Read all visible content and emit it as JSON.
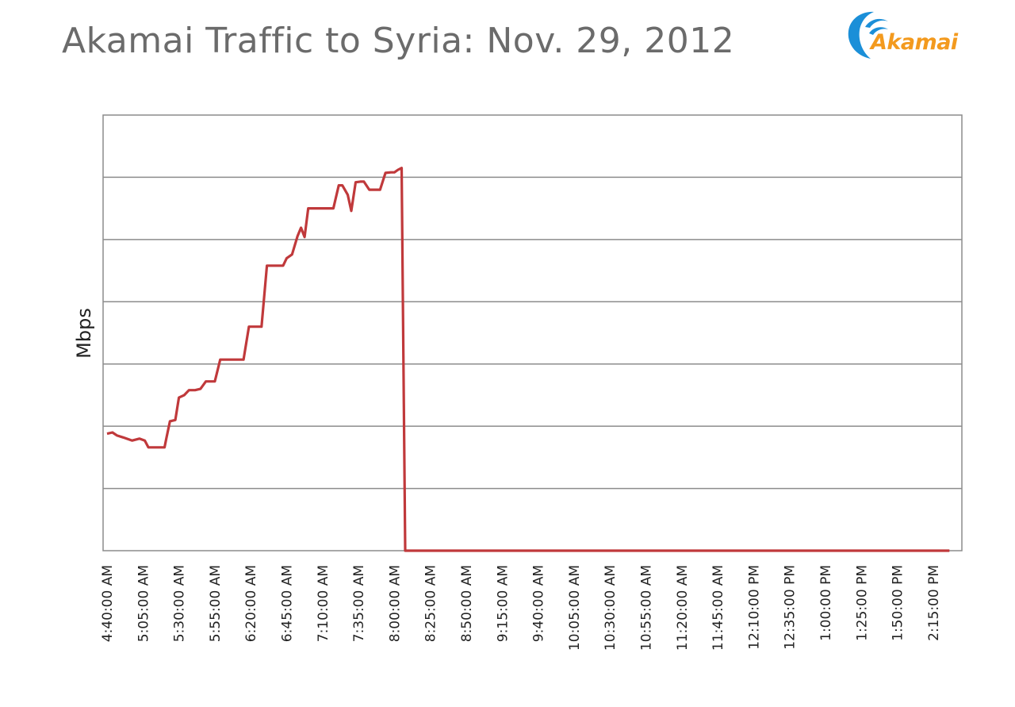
{
  "header": {
    "title": "Akamai Traffic to Syria: Nov. 29, 2012",
    "logo_text": "Akamai"
  },
  "colors": {
    "title": "#6b6b6b",
    "series": "#c0393b",
    "grid": "#8c8c8c",
    "logo_orange": "#f39a1e",
    "logo_blue": "#1b8fd8"
  },
  "chart_data": {
    "type": "line",
    "title": "Akamai Traffic to Syria: Nov. 29, 2012",
    "xlabel": "",
    "ylabel": "Mbps",
    "ylim": [
      0,
      7
    ],
    "y_tick_labels_shown": false,
    "grid": true,
    "x_tick_labels": [
      "4:40:00 AM",
      "5:05:00 AM",
      "5:30:00 AM",
      "5:55:00 AM",
      "6:20:00 AM",
      "6:45:00 AM",
      "7:10:00 AM",
      "7:35:00 AM",
      "8:00:00 AM",
      "8:25:00 AM",
      "8:50:00 AM",
      "9:15:00 AM",
      "9:40:00 AM",
      "10:05:00 AM",
      "10:30:00 AM",
      "10:55:00 AM",
      "11:20:00 AM",
      "11:45:00 AM",
      "12:10:00 PM",
      "12:35:00 PM",
      "1:00:00 PM",
      "1:25:00 PM",
      "1:50:00 PM",
      "2:15:00 PM"
    ],
    "series": [
      {
        "name": "",
        "points": [
          [
            0.0,
            1.88
          ],
          [
            0.15,
            1.9
          ],
          [
            0.28,
            1.85
          ],
          [
            0.45,
            1.82
          ],
          [
            0.7,
            1.77
          ],
          [
            0.9,
            1.8
          ],
          [
            1.05,
            1.77
          ],
          [
            1.15,
            1.66
          ],
          [
            1.4,
            1.66
          ],
          [
            1.6,
            1.66
          ],
          [
            1.65,
            1.8
          ],
          [
            1.75,
            2.08
          ],
          [
            1.9,
            2.1
          ],
          [
            2.0,
            2.46
          ],
          [
            2.15,
            2.5
          ],
          [
            2.28,
            2.58
          ],
          [
            2.45,
            2.58
          ],
          [
            2.6,
            2.6
          ],
          [
            2.75,
            2.72
          ],
          [
            3.0,
            2.72
          ],
          [
            3.15,
            3.07
          ],
          [
            3.4,
            3.07
          ],
          [
            3.6,
            3.07
          ],
          [
            3.8,
            3.07
          ],
          [
            3.95,
            3.6
          ],
          [
            4.1,
            3.6
          ],
          [
            4.3,
            3.6
          ],
          [
            4.45,
            4.58
          ],
          [
            4.6,
            4.58
          ],
          [
            4.9,
            4.58
          ],
          [
            5.0,
            4.7
          ],
          [
            5.15,
            4.76
          ],
          [
            5.3,
            5.05
          ],
          [
            5.4,
            5.19
          ],
          [
            5.5,
            5.04
          ],
          [
            5.6,
            5.5
          ],
          [
            5.8,
            5.5
          ],
          [
            6.0,
            5.5
          ],
          [
            6.3,
            5.5
          ],
          [
            6.45,
            5.87
          ],
          [
            6.55,
            5.87
          ],
          [
            6.7,
            5.72
          ],
          [
            6.8,
            5.46
          ],
          [
            6.92,
            5.92
          ],
          [
            7.05,
            5.93
          ],
          [
            7.15,
            5.93
          ],
          [
            7.3,
            5.8
          ],
          [
            7.45,
            5.8
          ],
          [
            7.6,
            5.8
          ],
          [
            7.75,
            6.07
          ],
          [
            7.9,
            6.08
          ],
          [
            8.0,
            6.08
          ],
          [
            8.1,
            6.12
          ],
          [
            8.2,
            6.15
          ],
          [
            8.3,
            0.0
          ],
          [
            9.0,
            0.0
          ],
          [
            23.45,
            0.0
          ]
        ]
      }
    ]
  }
}
